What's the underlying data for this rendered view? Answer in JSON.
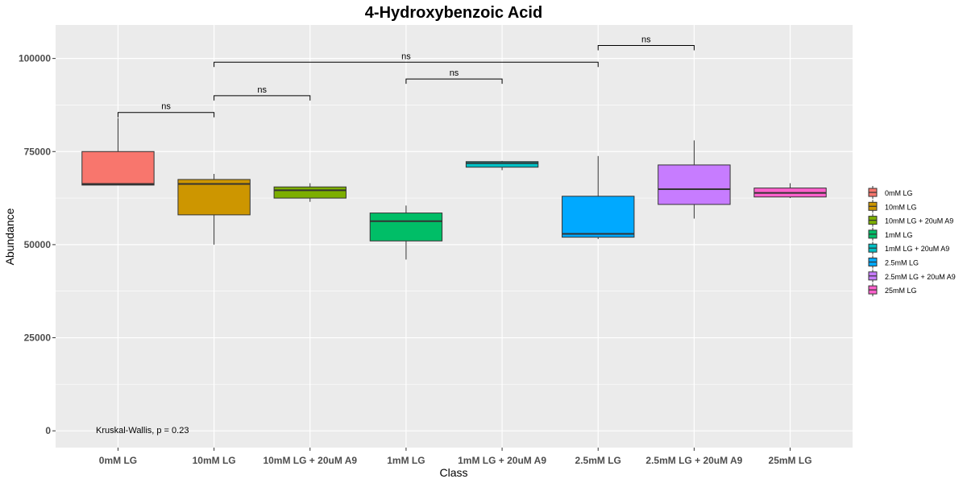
{
  "chart_data": {
    "type": "box",
    "title": "4-Hydroxybenzoic Acid",
    "xlabel": "Class",
    "ylabel": "Abundance",
    "ylim": [
      -4500,
      109000
    ],
    "yticks": [
      0,
      25000,
      50000,
      75000,
      100000
    ],
    "ytick_labels": [
      "0",
      "25000",
      "50000",
      "75000",
      "100000"
    ],
    "categories": [
      "0mM LG",
      "10mM LG",
      "10mM LG + 20uM A9",
      "1mM LG",
      "1mM LG + 20uM A9",
      "2.5mM LG",
      "2.5mM LG + 20uM A9",
      "25mM LG"
    ],
    "boxes": [
      {
        "label": "0mM LG",
        "color": "#F8766D",
        "lower_whisker": 66000,
        "q1": 66000,
        "median": 66300,
        "q3": 75000,
        "upper_whisker": 84000
      },
      {
        "label": "10mM LG",
        "color": "#CD9600",
        "lower_whisker": 50000,
        "q1": 58000,
        "median": 66300,
        "q3": 67500,
        "upper_whisker": 69000
      },
      {
        "label": "10mM LG + 20uM A9",
        "color": "#7CAE00",
        "lower_whisker": 61500,
        "q1": 62500,
        "median": 64600,
        "q3": 65500,
        "upper_whisker": 66500
      },
      {
        "label": "1mM LG",
        "color": "#00BE67",
        "lower_whisker": 46000,
        "q1": 51000,
        "median": 56300,
        "q3": 58500,
        "upper_whisker": 60500
      },
      {
        "label": "1mM LG + 20uM A9",
        "color": "#00BFC4",
        "lower_whisker": 70000,
        "q1": 70800,
        "median": 71900,
        "q3": 72300,
        "upper_whisker": 72500
      },
      {
        "label": "2.5mM LG",
        "color": "#00A9FF",
        "lower_whisker": 51500,
        "q1": 52000,
        "median": 52900,
        "q3": 63000,
        "upper_whisker": 73800
      },
      {
        "label": "2.5mM LG + 20uM A9",
        "color": "#C77CFF",
        "lower_whisker": 57000,
        "q1": 60800,
        "median": 64900,
        "q3": 71400,
        "upper_whisker": 78000
      },
      {
        "label": "25mM LG",
        "color": "#FF61CC",
        "lower_whisker": 62500,
        "q1": 62800,
        "median": 63900,
        "q3": 65200,
        "upper_whisker": 66500
      }
    ],
    "comparisons": [
      {
        "from": 0,
        "to": 1,
        "y": 85500,
        "label": "ns"
      },
      {
        "from": 1,
        "to": 2,
        "y": 90000,
        "label": "ns"
      },
      {
        "from": 3,
        "to": 4,
        "y": 94500,
        "label": "ns"
      },
      {
        "from": 1,
        "to": 5,
        "y": 99000,
        "label": "ns"
      },
      {
        "from": 5,
        "to": 6,
        "y": 103500,
        "label": "ns"
      }
    ],
    "annotation": "Kruskal-Wallis, p = 0.23",
    "legend": {
      "placement": "right",
      "entries": [
        "0mM LG",
        "10mM LG",
        "10mM LG + 20uM A9",
        "1mM LG",
        "1mM LG + 20uM A9",
        "2.5mM LG",
        "2.5mM LG + 20uM A9",
        "25mM LG"
      ]
    },
    "grid": true,
    "background": "#EBEBEB"
  }
}
